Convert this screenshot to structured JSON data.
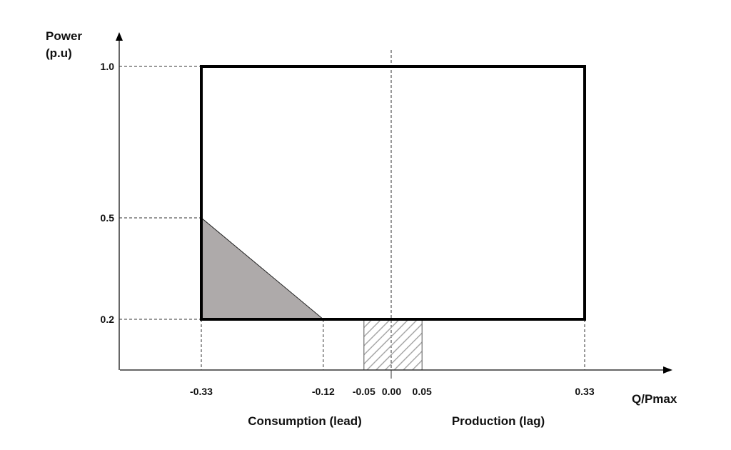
{
  "y_axis": {
    "label_line1": "Power",
    "label_line2": "(p.u)",
    "ticks": [
      {
        "value": 1.0,
        "label": "1.0"
      },
      {
        "value": 0.5,
        "label": "0.5"
      },
      {
        "value": 0.2,
        "label": "0.2"
      }
    ]
  },
  "x_axis": {
    "label": "Q/Pmax",
    "ticks": [
      {
        "value": -0.33,
        "label": "-0.33"
      },
      {
        "value": -0.12,
        "label": "-0.12"
      },
      {
        "value": -0.05,
        "label": "-0.05"
      },
      {
        "value": 0.0,
        "label": "0.00"
      },
      {
        "value": 0.05,
        "label": "0.05"
      },
      {
        "value": 0.33,
        "label": "0.33"
      }
    ]
  },
  "regions": {
    "consumption_label": "Consumption (lead)",
    "production_label": "Production (lag)"
  },
  "shapes": {
    "operating_rectangle": {
      "q": [
        -0.33,
        0.33
      ],
      "p": [
        0.2,
        1.0
      ]
    },
    "gray_triangle": [
      [
        -0.33,
        0.5
      ],
      [
        -0.33,
        0.2
      ],
      [
        -0.12,
        0.2
      ]
    ],
    "hatched_band": {
      "q": [
        -0.05,
        0.05
      ],
      "p_top": 0.2
    },
    "triangle_color": "#aeaaaa",
    "hatch_color": "#a8a8a8"
  }
}
